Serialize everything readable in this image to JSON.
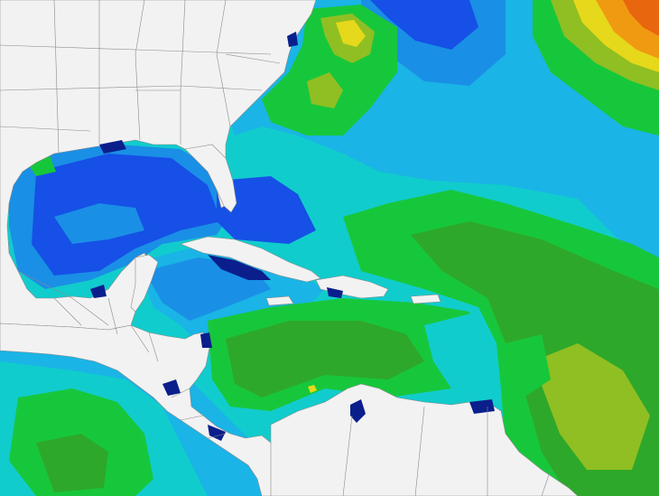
{
  "map": {
    "colors": {
      "land": "#f2f2f2",
      "border": "#8a8a8a",
      "deep_blue": "#0a1f8c",
      "blue": "#1650e6",
      "mid_blue": "#1a8fe6",
      "light_blue": "#1ab4e6",
      "cyan": "#11cccc",
      "green": "#17c73b",
      "mid_green": "#2ea82a",
      "yellow_green": "#8fbf22",
      "yellow": "#e6d81a",
      "orange": "#f09a12",
      "red_orange": "#e8660e"
    }
  }
}
